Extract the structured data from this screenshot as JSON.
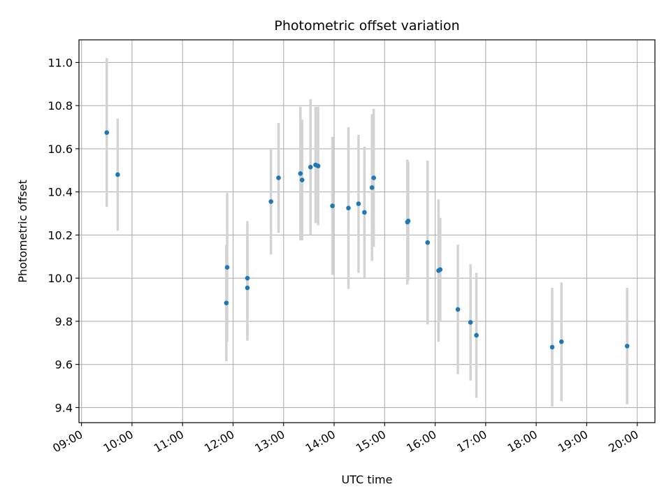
{
  "chart_data": {
    "type": "scatter",
    "title": "Photometric offset variation",
    "xlabel": "UTC time",
    "ylabel": "Photometric offset",
    "xlim": [
      "08:57",
      "20:21"
    ],
    "ylim": [
      9.33,
      11.105
    ],
    "xticks": [
      "09:00",
      "10:00",
      "11:00",
      "12:00",
      "13:00",
      "14:00",
      "15:00",
      "16:00",
      "17:00",
      "18:00",
      "19:00",
      "20:00"
    ],
    "yticks": [
      9.4,
      9.6,
      9.8,
      10.0,
      10.2,
      10.4,
      10.6,
      10.8,
      11.0
    ],
    "ytick_labels": [
      "9.4",
      "9.6",
      "9.8",
      "10.0",
      "10.2",
      "10.4",
      "10.6",
      "10.8",
      "11.0"
    ],
    "grid": true,
    "colors": {
      "point": "#1f77b4",
      "errorbar": "#d3d3d3",
      "grid": "#b0b0b0"
    },
    "points": [
      {
        "x": "09:30",
        "y": 10.675,
        "err": 0.345
      },
      {
        "x": "09:43",
        "y": 10.48,
        "err": 0.26
      },
      {
        "x": "11:52",
        "y": 9.885,
        "err": 0.27
      },
      {
        "x": "11:53",
        "y": 10.05,
        "err": 0.345
      },
      {
        "x": "12:17",
        "y": 9.955,
        "err": 0.245
      },
      {
        "x": "12:17",
        "y": 10.0,
        "err": 0.265
      },
      {
        "x": "12:45",
        "y": 10.355,
        "err": 0.245
      },
      {
        "x": "12:54",
        "y": 10.465,
        "err": 0.255
      },
      {
        "x": "13:20",
        "y": 10.485,
        "err": 0.31
      },
      {
        "x": "13:22",
        "y": 10.455,
        "err": 0.28
      },
      {
        "x": "13:32",
        "y": 10.515,
        "err": 0.315
      },
      {
        "x": "13:38",
        "y": 10.525,
        "err": 0.27
      },
      {
        "x": "13:41",
        "y": 10.52,
        "err": 0.275
      },
      {
        "x": "13:58",
        "y": 10.335,
        "err": 0.32
      },
      {
        "x": "14:17",
        "y": 10.325,
        "err": 0.375
      },
      {
        "x": "14:29",
        "y": 10.345,
        "err": 0.32
      },
      {
        "x": "14:36",
        "y": 10.305,
        "err": 0.305
      },
      {
        "x": "14:45",
        "y": 10.42,
        "err": 0.34
      },
      {
        "x": "14:47",
        "y": 10.465,
        "err": 0.32
      },
      {
        "x": "15:27",
        "y": 10.26,
        "err": 0.29
      },
      {
        "x": "15:28",
        "y": 10.265,
        "err": 0.275
      },
      {
        "x": "15:51",
        "y": 10.165,
        "err": 0.38
      },
      {
        "x": "16:04",
        "y": 10.035,
        "err": 0.33
      },
      {
        "x": "16:06",
        "y": 10.04,
        "err": 0.24
      },
      {
        "x": "16:27",
        "y": 9.855,
        "err": 0.3
      },
      {
        "x": "16:42",
        "y": 9.795,
        "err": 0.27
      },
      {
        "x": "16:49",
        "y": 9.735,
        "err": 0.29
      },
      {
        "x": "18:19",
        "y": 9.68,
        "err": 0.275
      },
      {
        "x": "18:30",
        "y": 9.705,
        "err": 0.275
      },
      {
        "x": "19:48",
        "y": 9.685,
        "err": 0.27
      }
    ]
  }
}
